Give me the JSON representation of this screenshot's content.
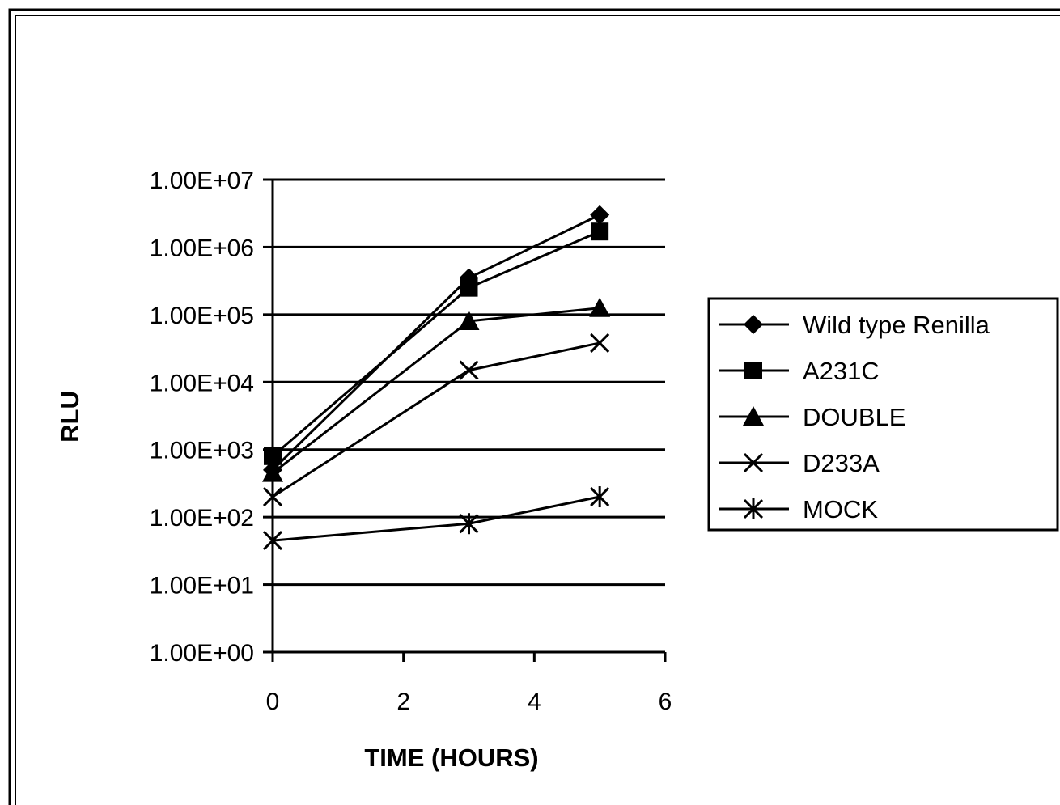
{
  "chart_data": {
    "type": "line",
    "title": "",
    "xlabel": "TIME (HOURS)",
    "ylabel": "RLU",
    "x_ticks": [
      0,
      2,
      4,
      6
    ],
    "x_tick_labels": [
      "0",
      "2",
      "4",
      "6"
    ],
    "xlim": [
      0,
      6
    ],
    "y_scale": "log",
    "ylim": [
      1,
      10000000
    ],
    "y_ticks": [
      1,
      10,
      100,
      1000,
      10000,
      100000,
      1000000,
      10000000
    ],
    "y_tick_labels": [
      "1.00E+00",
      "1.00E+01",
      "1.00E+02",
      "1.00E+03",
      "1.00E+04",
      "1.00E+05",
      "1.00E+06",
      "1.00E+07"
    ],
    "grid": "horizontal",
    "legend_position": "right",
    "series": [
      {
        "name": "Wild type Renilla",
        "marker": "diamond",
        "color": "#000000",
        "x": [
          0,
          3,
          5
        ],
        "y": [
          500,
          350000,
          3000000
        ]
      },
      {
        "name": "A231C",
        "marker": "square",
        "color": "#000000",
        "x": [
          0,
          3,
          5
        ],
        "y": [
          800,
          250000,
          1700000
        ]
      },
      {
        "name": "DOUBLE",
        "marker": "triangle",
        "color": "#000000",
        "x": [
          0,
          3,
          5
        ],
        "y": [
          450,
          80000,
          125000
        ]
      },
      {
        "name": "D233A",
        "marker": "x",
        "color": "#000000",
        "x": [
          0,
          3,
          5
        ],
        "y": [
          200,
          15000,
          38000
        ]
      },
      {
        "name": "MOCK",
        "marker": "star",
        "color": "#000000",
        "x": [
          0,
          3,
          5
        ],
        "y": [
          45,
          80,
          200
        ]
      }
    ]
  }
}
